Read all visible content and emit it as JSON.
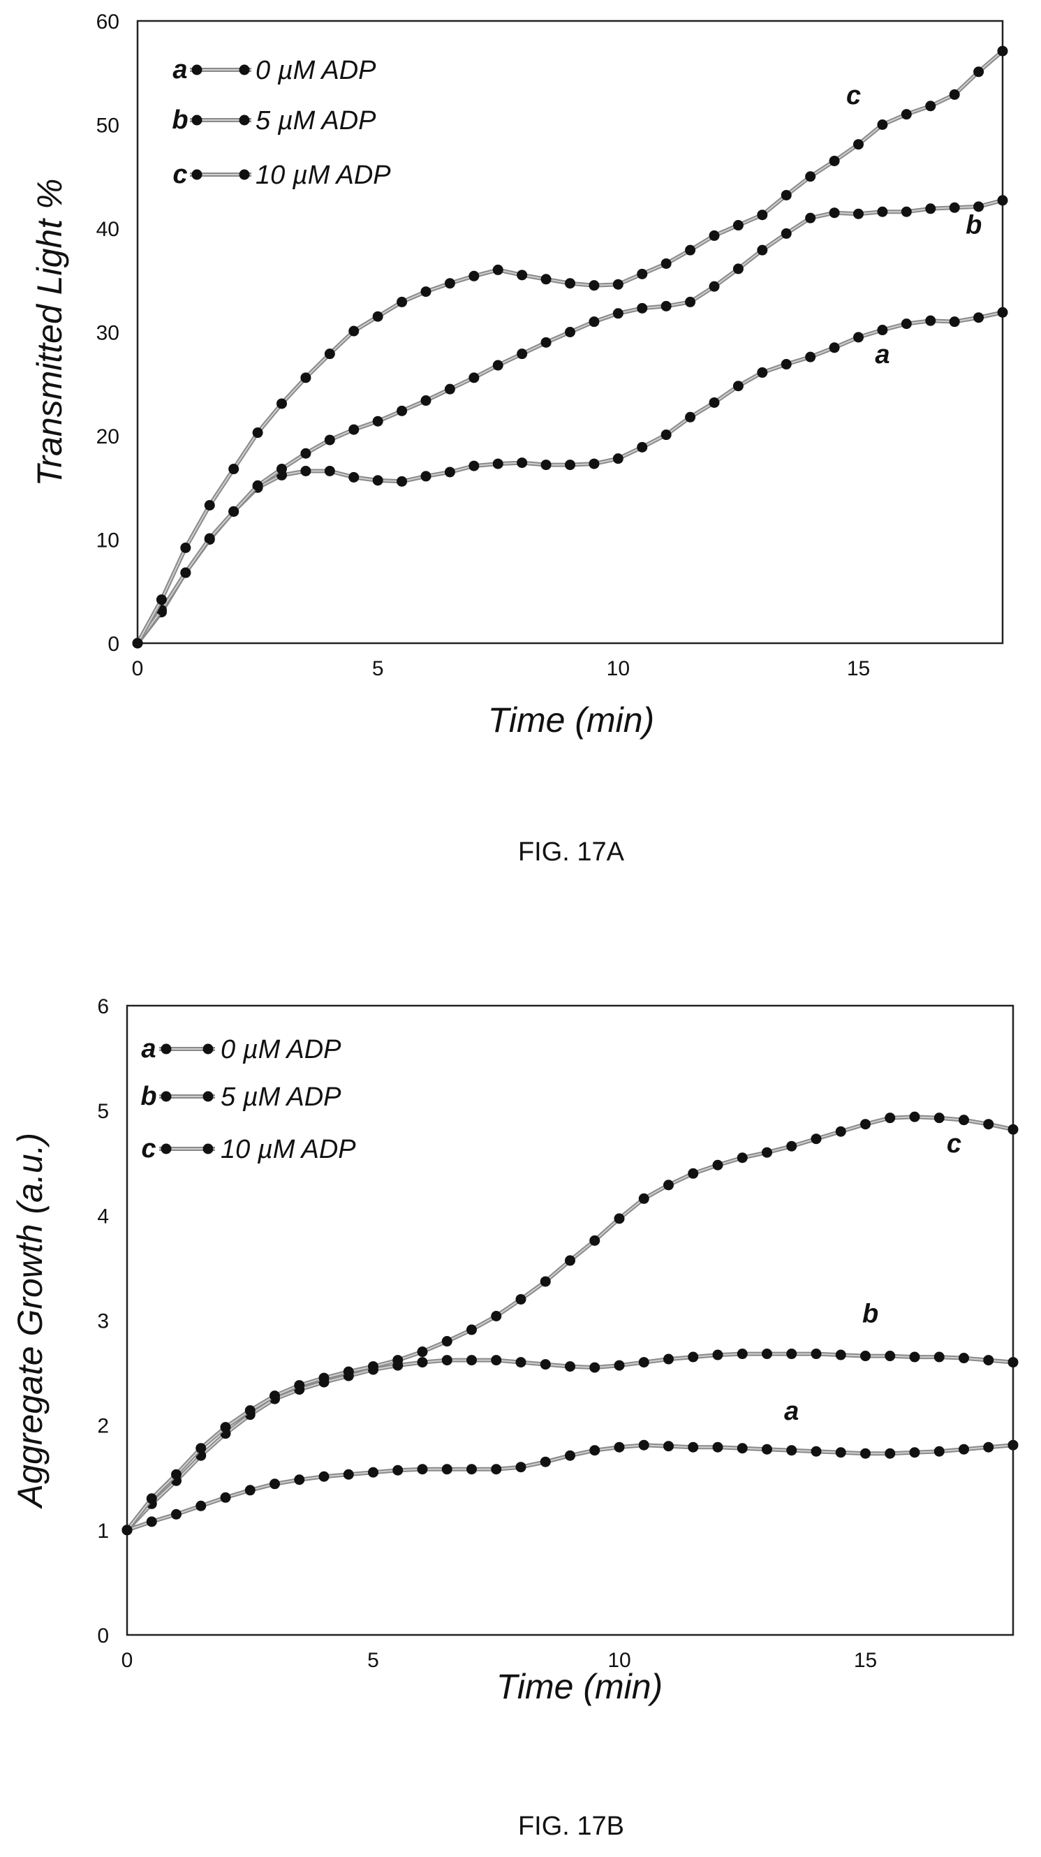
{
  "figures": [
    {
      "caption": "FIG. 17A",
      "chart_data": {
        "type": "line",
        "xlabel": "Time (min)",
        "ylabel": "Transmitted Light %",
        "xlim": [
          0,
          18
        ],
        "ylim": [
          0,
          60
        ],
        "xticks": [
          0,
          5,
          10,
          15
        ],
        "yticks": [
          0,
          10,
          20,
          30,
          40,
          50,
          60
        ],
        "grid": false,
        "legend_position": "top-left",
        "series": [
          {
            "name": "0 µM ADP",
            "key": "a",
            "x": [
              0,
              0.5,
              1,
              1.5,
              2,
              2.5,
              3,
              3.5,
              4,
              4.5,
              5,
              5.5,
              6,
              6.5,
              7,
              7.5,
              8,
              8.5,
              9,
              9.5,
              10,
              10.5,
              11,
              11.5,
              12,
              12.5,
              13,
              13.5,
              14,
              14.5,
              15,
              15.5,
              16,
              16.5,
              17,
              17.5,
              18
            ],
            "y": [
              0,
              3,
              6.8,
              10,
              12.7,
              15,
              16.2,
              16.6,
              16.6,
              16,
              15.7,
              15.6,
              16.1,
              16.5,
              17.1,
              17.3,
              17.4,
              17.2,
              17.2,
              17.3,
              17.8,
              18.9,
              20.1,
              21.8,
              23.2,
              24.8,
              26.1,
              26.9,
              27.6,
              28.5,
              29.5,
              30.2,
              30.8,
              31.1,
              31,
              31.4,
              31.9
            ]
          },
          {
            "name": "5 µM ADP",
            "key": "b",
            "x": [
              0,
              0.5,
              1,
              1.5,
              2,
              2.5,
              3,
              3.5,
              4,
              4.5,
              5,
              5.5,
              6,
              6.5,
              7,
              7.5,
              8,
              8.5,
              9,
              9.5,
              10,
              10.5,
              11,
              11.5,
              12,
              12.5,
              13,
              13.5,
              14,
              14.5,
              15,
              15.5,
              16,
              16.5,
              17,
              17.5,
              18
            ],
            "y": [
              0,
              3.2,
              6.8,
              10.1,
              12.7,
              15.2,
              16.8,
              18.3,
              19.6,
              20.6,
              21.4,
              22.4,
              23.4,
              24.5,
              25.6,
              26.8,
              27.9,
              29,
              30,
              31,
              31.8,
              32.3,
              32.5,
              32.9,
              34.4,
              36.1,
              37.9,
              39.5,
              41,
              41.5,
              41.4,
              41.6,
              41.6,
              41.9,
              42,
              42.1,
              42.7
            ]
          },
          {
            "name": "10  µM ADP",
            "key": "c",
            "x": [
              0,
              0.5,
              1,
              1.5,
              2,
              2.5,
              3,
              3.5,
              4,
              4.5,
              5,
              5.5,
              6,
              6.5,
              7,
              7.5,
              8,
              8.5,
              9,
              9.5,
              10,
              10.5,
              11,
              11.5,
              12,
              12.5,
              13,
              13.5,
              14,
              14.5,
              15,
              15.5,
              16,
              16.5,
              17,
              17.5,
              18
            ],
            "y": [
              0,
              4.2,
              9.2,
              13.3,
              16.8,
              20.3,
              23.1,
              25.6,
              27.9,
              30.1,
              31.5,
              32.9,
              33.9,
              34.7,
              35.4,
              36,
              35.5,
              35.1,
              34.7,
              34.5,
              34.6,
              35.6,
              36.6,
              37.9,
              39.3,
              40.3,
              41.3,
              43.2,
              45,
              46.5,
              48.1,
              50,
              51,
              51.8,
              52.9,
              55.1,
              57.1
            ]
          }
        ],
        "annotations": [
          {
            "text": "a",
            "x": 15.5,
            "y": 27
          },
          {
            "text": "b",
            "x": 17.4,
            "y": 39.5
          },
          {
            "text": "c",
            "x": 14.9,
            "y": 52
          }
        ]
      }
    },
    {
      "caption": "FIG. 17B",
      "chart_data": {
        "type": "line",
        "xlabel": "Time (min)",
        "ylabel": "Aggregate Growth (a.u.)",
        "xlim": [
          0,
          18
        ],
        "ylim": [
          0,
          6
        ],
        "xticks": [
          0,
          5,
          10,
          15
        ],
        "yticks": [
          0,
          1,
          2,
          3,
          4,
          5,
          6
        ],
        "grid": false,
        "legend_position": "top-left",
        "series": [
          {
            "name": "0 µM ADP",
            "key": "a",
            "x": [
              0,
              0.5,
              1,
              1.5,
              2,
              2.5,
              3,
              3.5,
              4,
              4.5,
              5,
              5.5,
              6,
              6.5,
              7,
              7.5,
              8,
              8.5,
              9,
              9.5,
              10,
              10.5,
              11,
              11.5,
              12,
              12.5,
              13,
              13.5,
              14,
              14.5,
              15,
              15.5,
              16,
              16.5,
              17,
              17.5,
              18
            ],
            "y": [
              1,
              1.08,
              1.15,
              1.23,
              1.31,
              1.38,
              1.44,
              1.48,
              1.51,
              1.53,
              1.55,
              1.57,
              1.58,
              1.58,
              1.58,
              1.58,
              1.6,
              1.65,
              1.71,
              1.76,
              1.79,
              1.81,
              1.8,
              1.79,
              1.79,
              1.78,
              1.77,
              1.76,
              1.75,
              1.74,
              1.73,
              1.73,
              1.74,
              1.75,
              1.77,
              1.79,
              1.81
            ]
          },
          {
            "name": "5 µM ADP",
            "key": "b",
            "x": [
              0,
              0.5,
              1,
              1.5,
              2,
              2.5,
              3,
              3.5,
              4,
              4.5,
              5,
              5.5,
              6,
              6.5,
              7,
              7.5,
              8,
              8.5,
              9,
              9.5,
              10,
              10.5,
              11,
              11.5,
              12,
              12.5,
              13,
              13.5,
              14,
              14.5,
              15,
              15.5,
              16,
              16.5,
              17,
              17.5,
              18
            ],
            "y": [
              1,
              1.25,
              1.47,
              1.71,
              1.92,
              2.1,
              2.25,
              2.34,
              2.41,
              2.47,
              2.53,
              2.57,
              2.6,
              2.62,
              2.62,
              2.62,
              2.6,
              2.58,
              2.56,
              2.55,
              2.57,
              2.6,
              2.63,
              2.65,
              2.67,
              2.68,
              2.68,
              2.68,
              2.68,
              2.67,
              2.66,
              2.66,
              2.65,
              2.65,
              2.64,
              2.62,
              2.6
            ]
          },
          {
            "name": "10  µM ADP",
            "key": "c",
            "x": [
              0,
              0.5,
              1,
              1.5,
              2,
              2.5,
              3,
              3.5,
              4,
              4.5,
              5,
              5.5,
              6,
              6.5,
              7,
              7.5,
              8,
              8.5,
              9,
              9.5,
              10,
              10.5,
              11,
              11.5,
              12,
              12.5,
              13,
              13.5,
              14,
              14.5,
              15,
              15.5,
              16,
              16.5,
              17,
              17.5,
              18
            ],
            "y": [
              1,
              1.3,
              1.53,
              1.78,
              1.98,
              2.14,
              2.28,
              2.38,
              2.45,
              2.51,
              2.56,
              2.62,
              2.7,
              2.8,
              2.91,
              3.04,
              3.2,
              3.37,
              3.57,
              3.76,
              3.97,
              4.16,
              4.29,
              4.4,
              4.48,
              4.55,
              4.6,
              4.66,
              4.73,
              4.8,
              4.87,
              4.93,
              4.94,
              4.93,
              4.91,
              4.87,
              4.82
            ]
          }
        ],
        "annotations": [
          {
            "text": "a",
            "x": 13.5,
            "y": 2.05
          },
          {
            "text": "b",
            "x": 15.1,
            "y": 2.98
          },
          {
            "text": "c",
            "x": 16.8,
            "y": 4.6
          }
        ]
      }
    }
  ]
}
